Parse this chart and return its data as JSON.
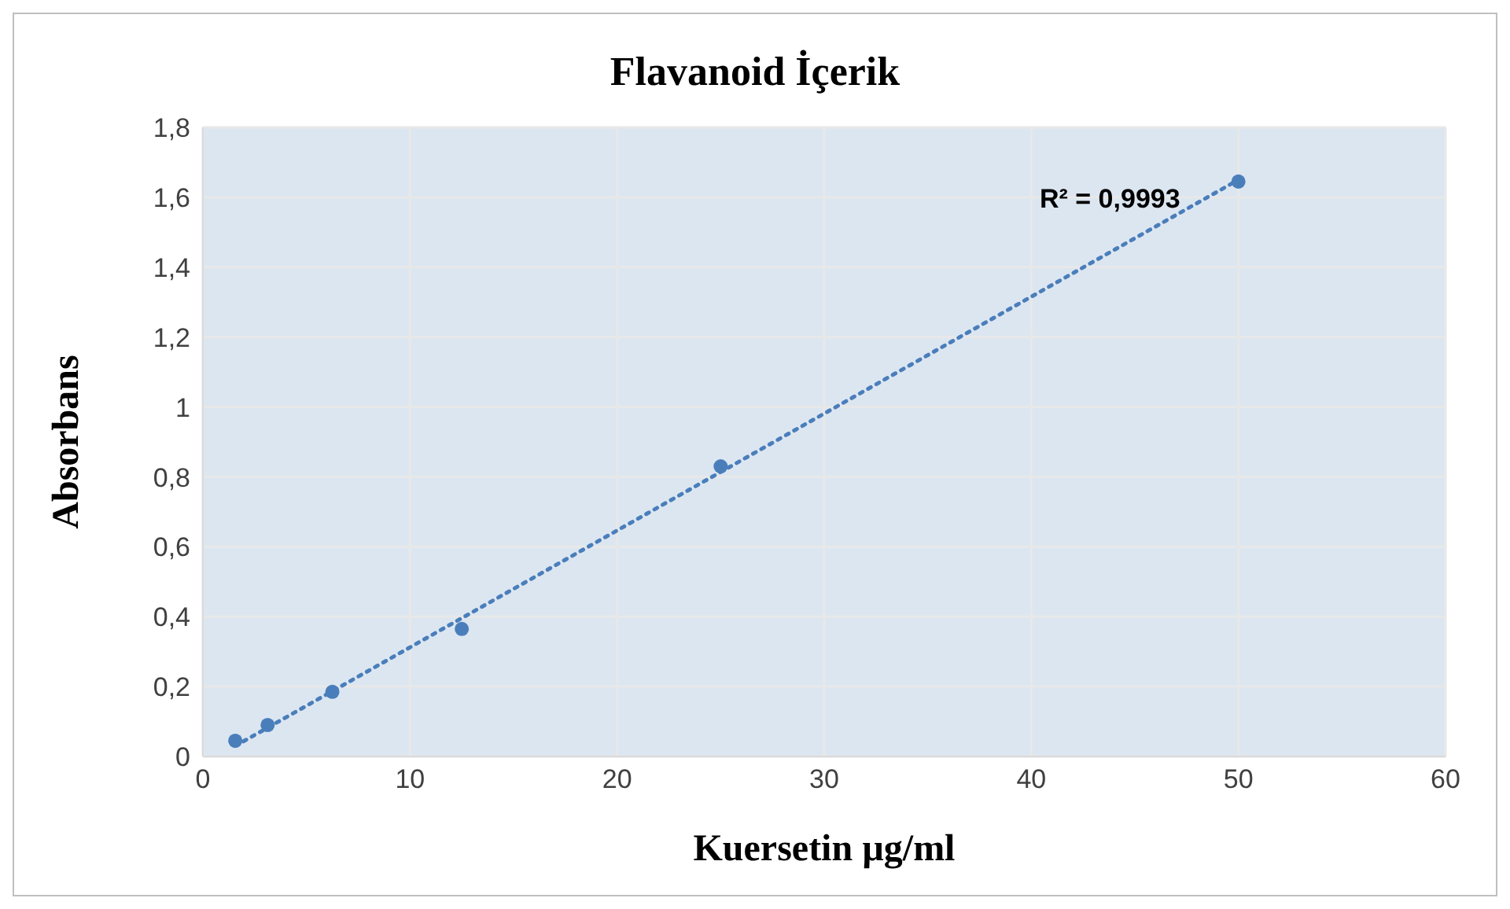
{
  "chart_data": {
    "type": "scatter",
    "title": "Flavanoid İçerik",
    "xlabel": "Kuersetin µg/ml",
    "ylabel": "Absorbans",
    "series": [
      {
        "color": "#4a7ebb",
        "marker": "circle",
        "x": [
          1.5625,
          3.125,
          6.25,
          12.5,
          25,
          50
        ],
        "values": [
          0.045,
          0.09,
          0.185,
          0.365,
          0.83,
          1.645
        ]
      },
      {
        "type": "line",
        "color": "#4a7ebb",
        "line_style": "dotted",
        "marker": "none",
        "x": [
          1.5625,
          50
        ],
        "values": [
          0.03,
          1.65
        ]
      }
    ],
    "xlim": [
      0,
      60
    ],
    "xticks": [
      0,
      10,
      20,
      30,
      40,
      50,
      60
    ],
    "ylim": [
      0,
      1.8
    ],
    "yticks": [
      0,
      {
        "value": 0.2,
        "label": "0,2"
      },
      {
        "value": 0.4,
        "label": "0,4"
      },
      {
        "value": 0.6,
        "label": "0,6"
      },
      {
        "value": 0.8,
        "label": "0,8"
      },
      1,
      {
        "value": 1.2,
        "label": "1,2"
      },
      {
        "value": 1.4,
        "label": "1,4"
      },
      {
        "value": 1.6,
        "label": "1,6"
      },
      {
        "value": 1.8,
        "label": "1,8"
      }
    ],
    "grid": true,
    "annotations": [
      "R² = 0,9993"
    ]
  }
}
